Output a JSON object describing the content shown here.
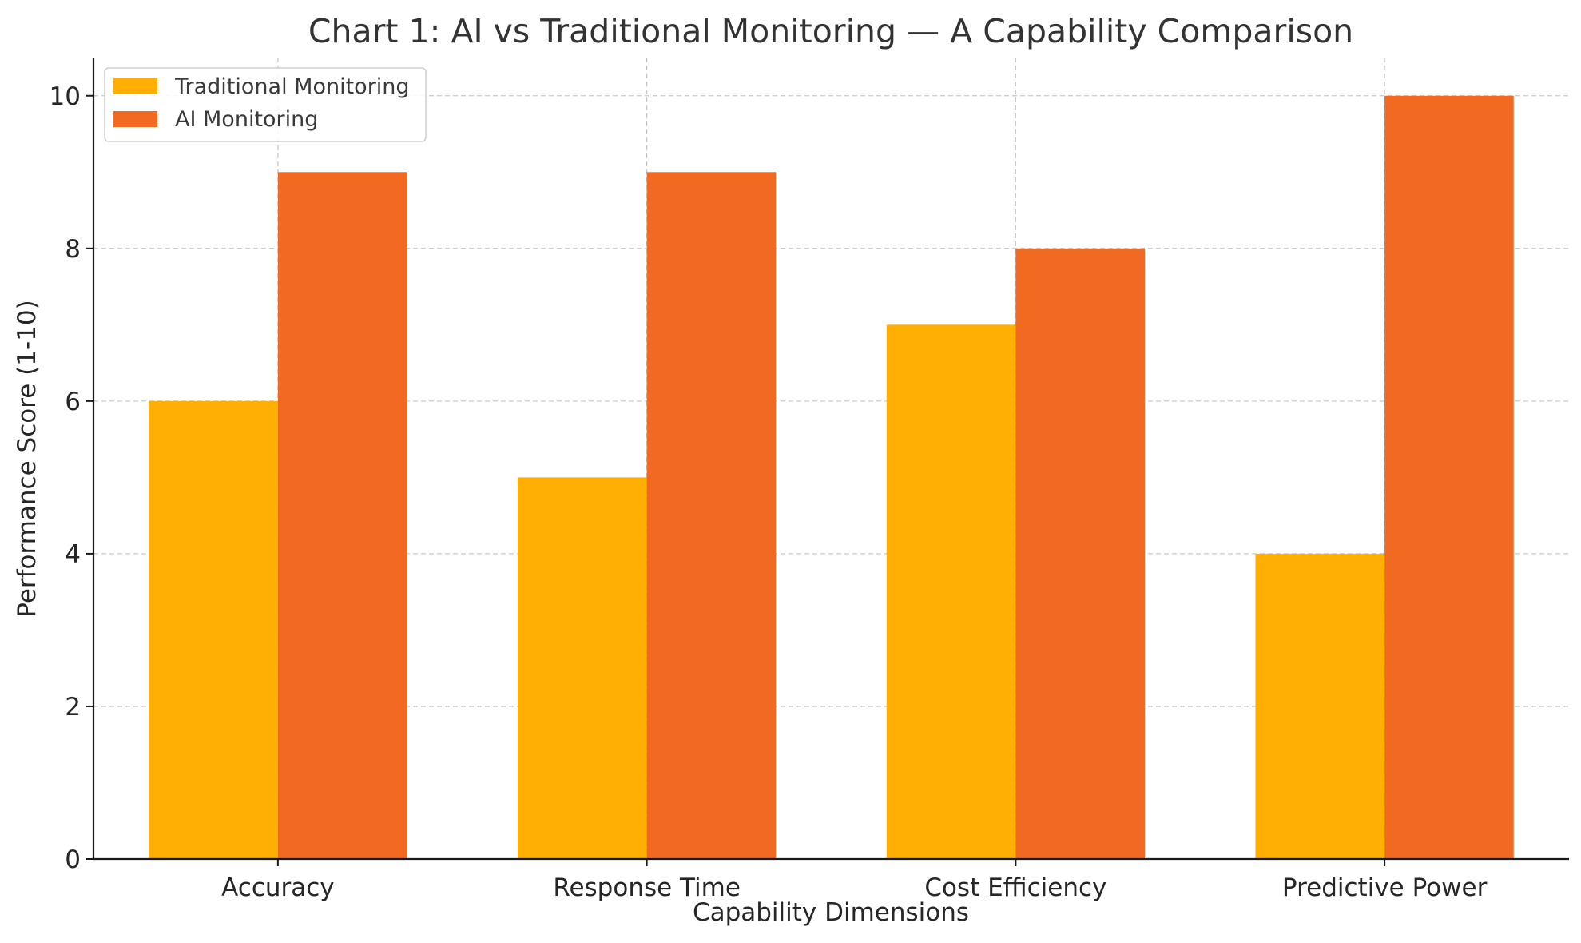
{
  "chart_data": {
    "type": "bar",
    "title": "Chart 1: AI vs Traditional Monitoring — A Capability Comparison",
    "xlabel": "Capability Dimensions",
    "ylabel": "Performance Score (1-10)",
    "categories": [
      "Accuracy",
      "Response Time",
      "Cost Efficiency",
      "Predictive Power"
    ],
    "series": [
      {
        "name": "Traditional Monitoring",
        "values": [
          6,
          5,
          7,
          4
        ],
        "color": "#FFAE03"
      },
      {
        "name": "AI Monitoring",
        "values": [
          9,
          9,
          8,
          10
        ],
        "color": "#F26A22"
      }
    ],
    "ylim": [
      0,
      10.5
    ],
    "yticks": [
      0,
      2,
      4,
      6,
      8,
      10
    ],
    "grid": true,
    "legend_position": "top-left"
  }
}
